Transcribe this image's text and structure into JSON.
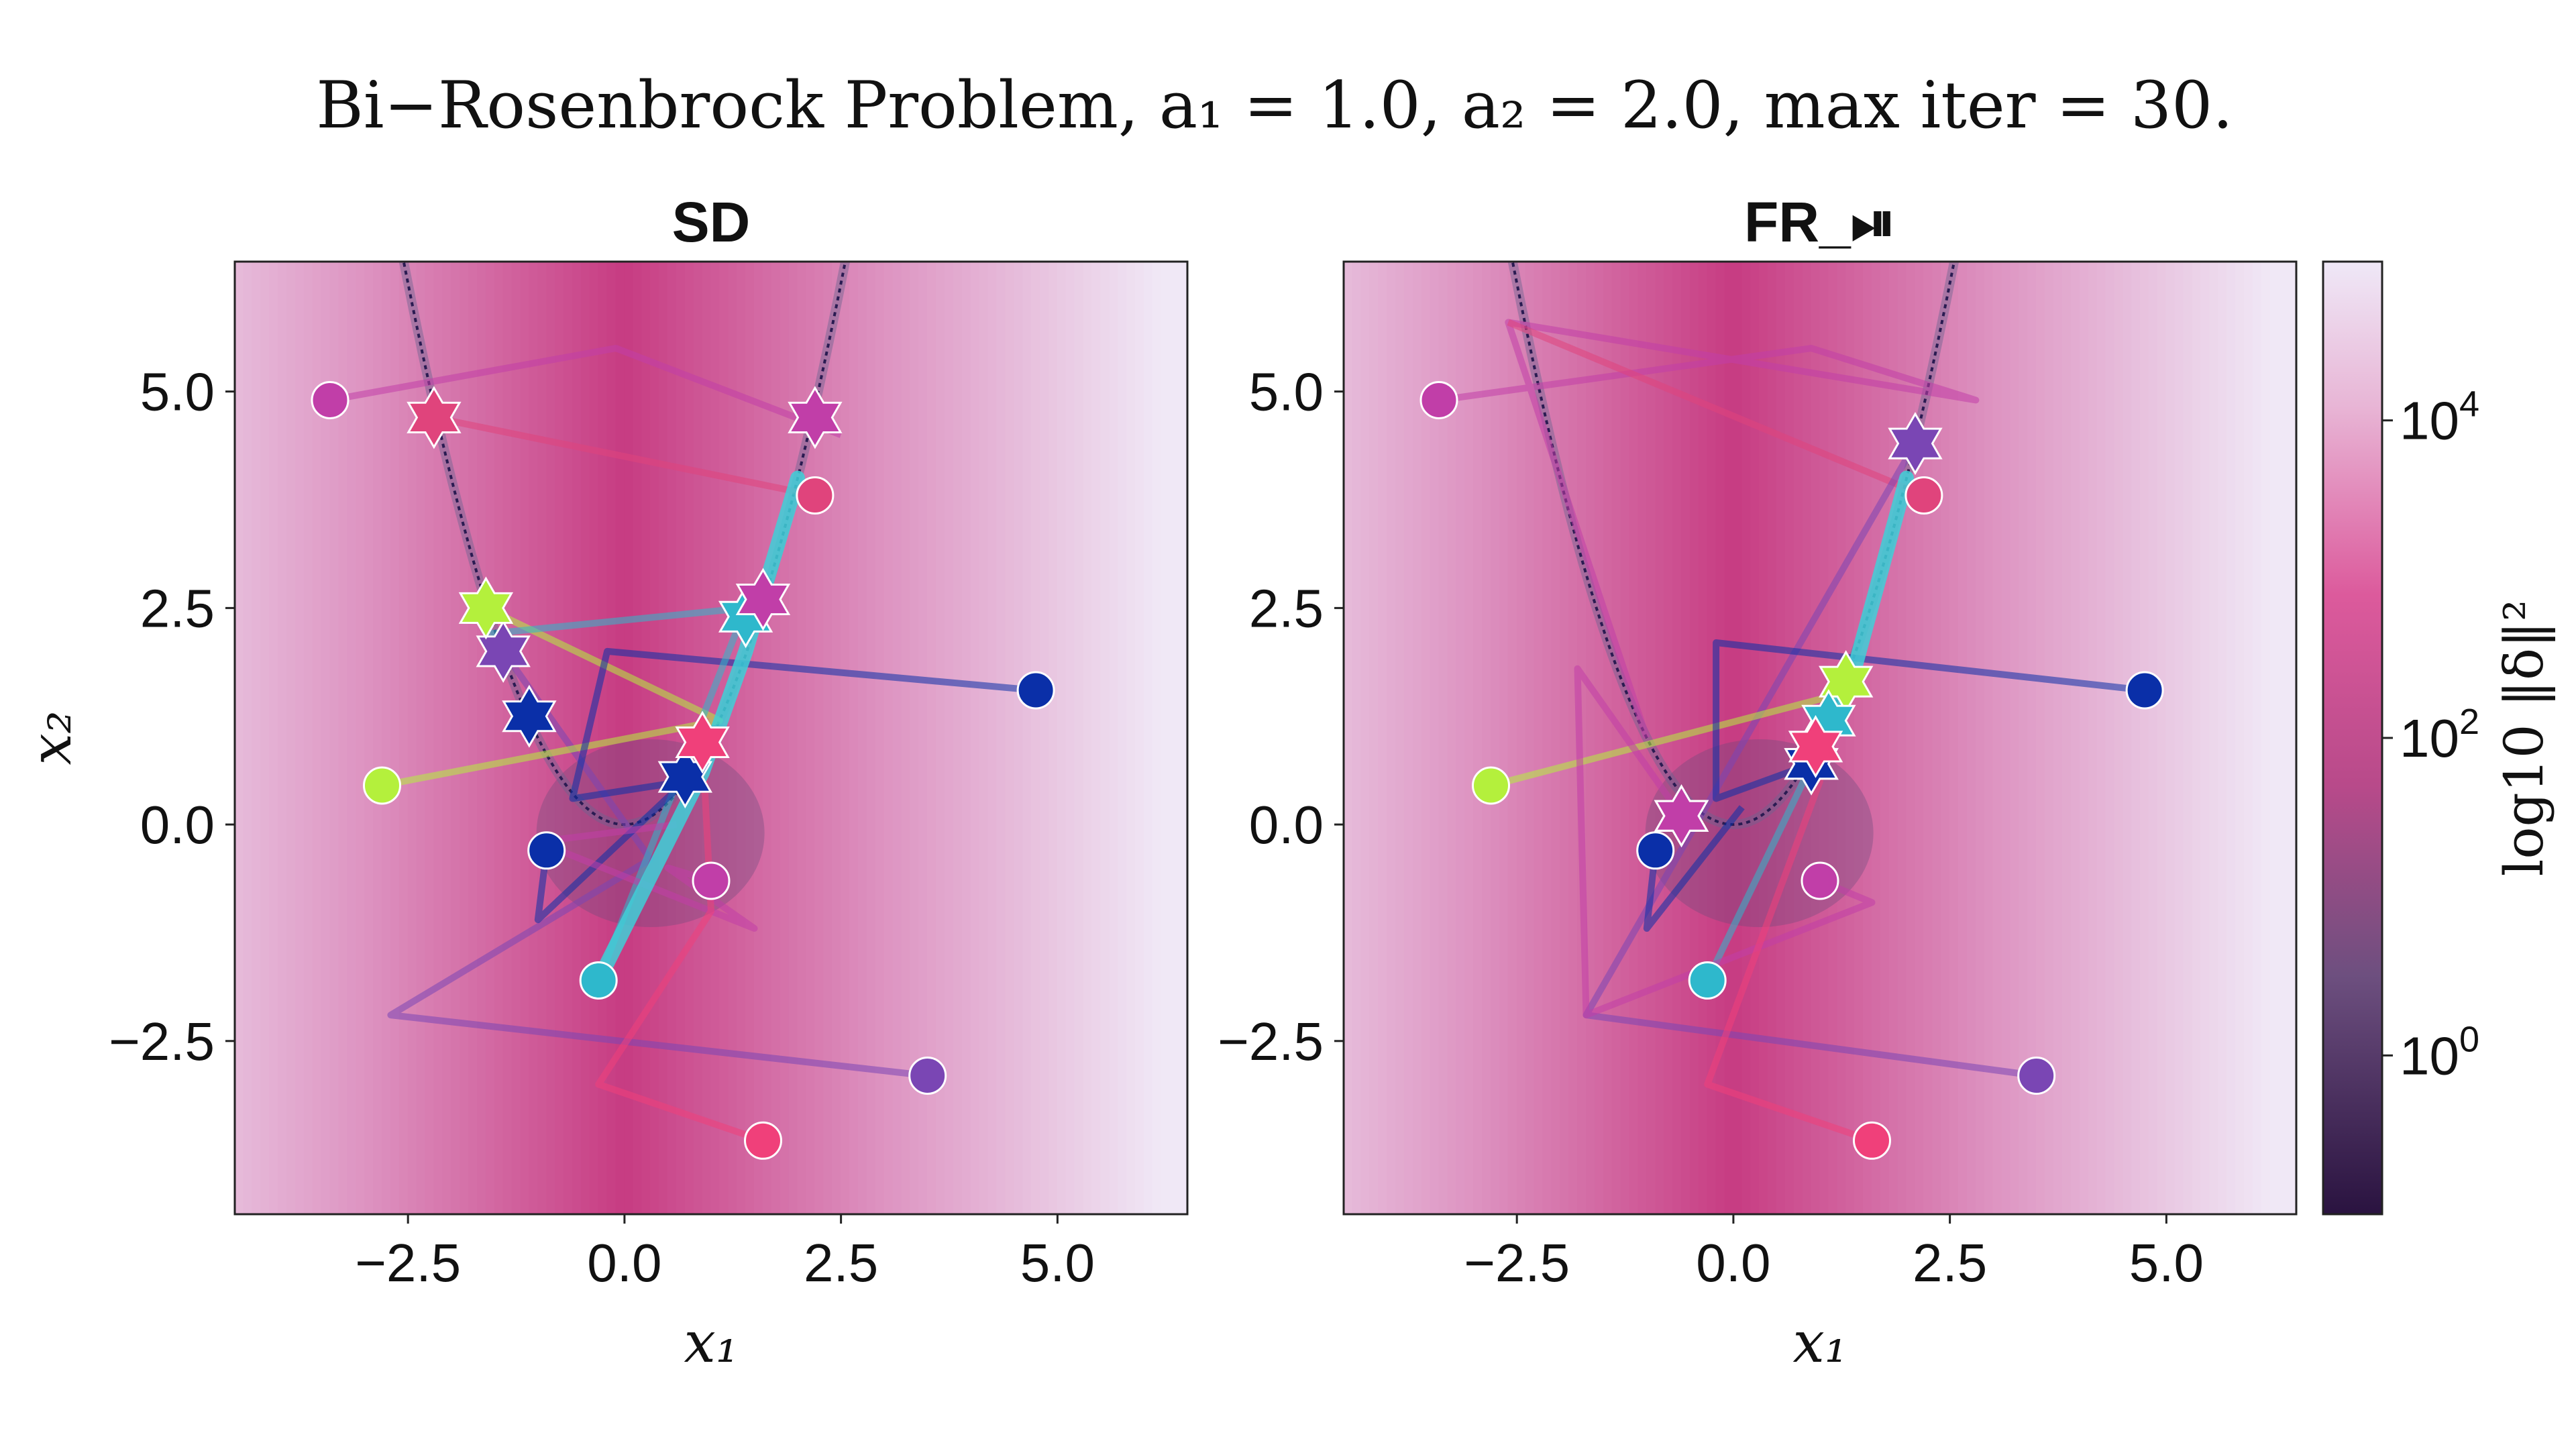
{
  "figure": {
    "title": "Bi−Rosenbrock Problem, a₁ = 1.0, a₂ = 2.0, max iter = 30."
  },
  "colors": {
    "start_colors": [
      "#c13ea8",
      "#e0447c",
      "#7a46b4",
      "#b4f03c",
      "#0a2fa8",
      "#2eb8cc",
      "#f0407a"
    ],
    "valley": "#2a1b52",
    "background_low": "#c7347f",
    "background_high": "#f0e6f6"
  },
  "colorbar": {
    "label": "log10 ‖δ‖²",
    "ticks": [
      {
        "base": "10",
        "exp": "4",
        "value": 10000
      },
      {
        "base": "10",
        "exp": "2",
        "value": 100
      },
      {
        "base": "10",
        "exp": "0",
        "value": 1
      }
    ],
    "range_log10": [
      -1,
      5
    ]
  },
  "chart_data": [
    {
      "type": "scatter",
      "title": "SD",
      "xlabel": "x₁",
      "ylabel": "x₂",
      "xlim": [
        -4.5,
        6.5
      ],
      "ylim": [
        -4.5,
        6.5
      ],
      "xticks": [
        "−2.5",
        "0.0",
        "2.5",
        "5.0"
      ],
      "yticks": [
        "−2.5",
        "0.0",
        "2.5",
        "5.0"
      ],
      "xtick_values": [
        -2.5,
        0.0,
        2.5,
        5.0
      ],
      "ytick_values": [
        -2.5,
        0.0,
        2.5,
        5.0
      ],
      "trajectories": [
        {
          "color": "#c13ea8",
          "start": [
            -3.4,
            4.9
          ],
          "path": [
            [
              -3.4,
              4.9
            ],
            [
              -0.1,
              5.5
            ],
            [
              2.5,
              4.5
            ]
          ],
          "end": [
            2.2,
            4.7
          ]
        },
        {
          "color": "#e0447c",
          "start": [
            2.2,
            3.8
          ],
          "path": [
            [
              2.2,
              3.8
            ],
            [
              -2.2,
              4.7
            ]
          ],
          "end": [
            -2.2,
            4.7
          ]
        },
        {
          "color": "#7a46b4",
          "start": [
            3.5,
            -2.9
          ],
          "path": [
            [
              3.5,
              -2.9
            ],
            [
              -2.7,
              -2.2
            ],
            [
              0.3,
              -0.4
            ],
            [
              -1.4,
              2.0
            ]
          ],
          "end": [
            -1.4,
            2.0
          ]
        },
        {
          "color": "#b4f03c",
          "start": [
            -2.8,
            0.45
          ],
          "path": [
            [
              -2.8,
              0.45
            ],
            [
              1.1,
              1.2
            ],
            [
              -1.6,
              2.5
            ]
          ],
          "end": [
            -1.6,
            2.5
          ]
        },
        {
          "color": "#0a2fa8",
          "start": [
            4.75,
            1.55
          ],
          "path": [
            [
              4.75,
              1.55
            ],
            [
              -0.2,
              2.0
            ],
            [
              -0.6,
              0.3
            ],
            [
              0.7,
              0.5
            ]
          ],
          "end": [
            0.7,
            0.55
          ]
        },
        {
          "color": "#2eb8cc",
          "start": [
            -0.3,
            -1.8
          ],
          "path": [
            [
              -0.3,
              -1.8
            ],
            [
              1.4,
              2.5
            ],
            [
              -1.6,
              2.2
            ]
          ],
          "end": [
            1.4,
            2.4
          ]
        },
        {
          "color": "#0a2fa8",
          "start": [
            -0.9,
            -0.3
          ],
          "path": [
            [
              -0.9,
              -0.3
            ],
            [
              -1.0,
              -1.1
            ],
            [
              0.7,
              0.5
            ]
          ],
          "end": [
            -1.1,
            1.25
          ]
        },
        {
          "color": "#c13ea8",
          "start": [
            1.0,
            -0.65
          ],
          "path": [
            [
              1.0,
              -0.65
            ],
            [
              0.5,
              -0.5
            ],
            [
              1.5,
              -1.2
            ],
            [
              -1.0,
              -0.2
            ],
            [
              0.6,
              0.0
            ]
          ],
          "end": [
            1.6,
            2.6
          ]
        },
        {
          "color": "#f0407a",
          "start": [
            1.6,
            -3.65
          ],
          "path": [
            [
              1.6,
              -3.65
            ],
            [
              -0.3,
              -3.0
            ],
            [
              1.0,
              -1.0
            ],
            [
              0.9,
              0.95
            ]
          ],
          "end": [
            0.9,
            0.95
          ]
        }
      ],
      "highlight_path": [
        [
          -0.3,
          -1.8
        ],
        [
          0.9,
          0.6
        ],
        [
          1.4,
          2.0
        ],
        [
          2.0,
          4.0
        ]
      ]
    },
    {
      "type": "scatter",
      "title": "FR_⏯",
      "xlabel": "x₁",
      "ylabel": "",
      "xlim": [
        -4.5,
        6.5
      ],
      "ylim": [
        -4.5,
        6.5
      ],
      "xticks": [
        "−2.5",
        "0.0",
        "2.5",
        "5.0"
      ],
      "yticks": [
        "−2.5",
        "0.0",
        "2.5",
        "5.0"
      ],
      "xtick_values": [
        -2.5,
        0.0,
        2.5,
        5.0
      ],
      "ytick_values": [
        -2.5,
        0.0,
        2.5,
        5.0
      ],
      "trajectories": [
        {
          "color": "#c13ea8",
          "start": [
            -3.4,
            4.9
          ],
          "path": [
            [
              -3.4,
              4.9
            ],
            [
              0.9,
              5.5
            ],
            [
              2.8,
              4.9
            ],
            [
              -2.6,
              5.8
            ],
            [
              -1.0,
              1.0
            ]
          ],
          "end": [
            -0.6,
            0.1
          ]
        },
        {
          "color": "#e0447c",
          "start": [
            2.2,
            3.8
          ],
          "path": [
            [
              2.2,
              3.8
            ],
            [
              -2.6,
              5.8
            ]
          ],
          "end": [
            -0.6,
            0.1
          ]
        },
        {
          "color": "#7a46b4",
          "start": [
            3.5,
            -2.9
          ],
          "path": [
            [
              3.5,
              -2.9
            ],
            [
              -1.7,
              -2.2
            ],
            [
              2.1,
              4.4
            ]
          ],
          "end": [
            2.1,
            4.4
          ]
        },
        {
          "color": "#b4f03c",
          "start": [
            -2.8,
            0.45
          ],
          "path": [
            [
              -2.8,
              0.45
            ],
            [
              1.2,
              1.5
            ]
          ],
          "end": [
            1.3,
            1.65
          ]
        },
        {
          "color": "#0a2fa8",
          "start": [
            4.75,
            1.55
          ],
          "path": [
            [
              4.75,
              1.55
            ],
            [
              -0.2,
              2.1
            ],
            [
              -0.2,
              0.3
            ],
            [
              0.9,
              0.7
            ]
          ],
          "end": [
            0.9,
            0.7
          ]
        },
        {
          "color": "#2eb8cc",
          "start": [
            -0.3,
            -1.8
          ],
          "path": [
            [
              -0.3,
              -1.8
            ],
            [
              1.1,
              1.1
            ]
          ],
          "end": [
            1.1,
            1.2
          ]
        },
        {
          "color": "#0a2fa8",
          "start": [
            -0.9,
            -0.3
          ],
          "path": [
            [
              -0.9,
              -0.3
            ],
            [
              -1.0,
              -1.2
            ],
            [
              0.1,
              0.2
            ]
          ],
          "end": [
            0.9,
            0.7
          ]
        },
        {
          "color": "#c13ea8",
          "start": [
            1.0,
            -0.65
          ],
          "path": [
            [
              1.0,
              -0.65
            ],
            [
              1.6,
              -0.9
            ],
            [
              -1.7,
              -2.2
            ],
            [
              -1.8,
              1.8
            ],
            [
              -0.6,
              0.1
            ]
          ],
          "end": [
            -0.6,
            0.1
          ]
        },
        {
          "color": "#f0407a",
          "start": [
            1.6,
            -3.65
          ],
          "path": [
            [
              1.6,
              -3.65
            ],
            [
              -0.3,
              -3.0
            ],
            [
              1.0,
              0.5
            ],
            [
              0.95,
              0.9
            ]
          ],
          "end": [
            0.95,
            0.9
          ]
        }
      ],
      "highlight_path": [
        [
          0.9,
          0.6
        ],
        [
          1.4,
          1.8
        ],
        [
          2.0,
          4.0
        ]
      ]
    }
  ]
}
